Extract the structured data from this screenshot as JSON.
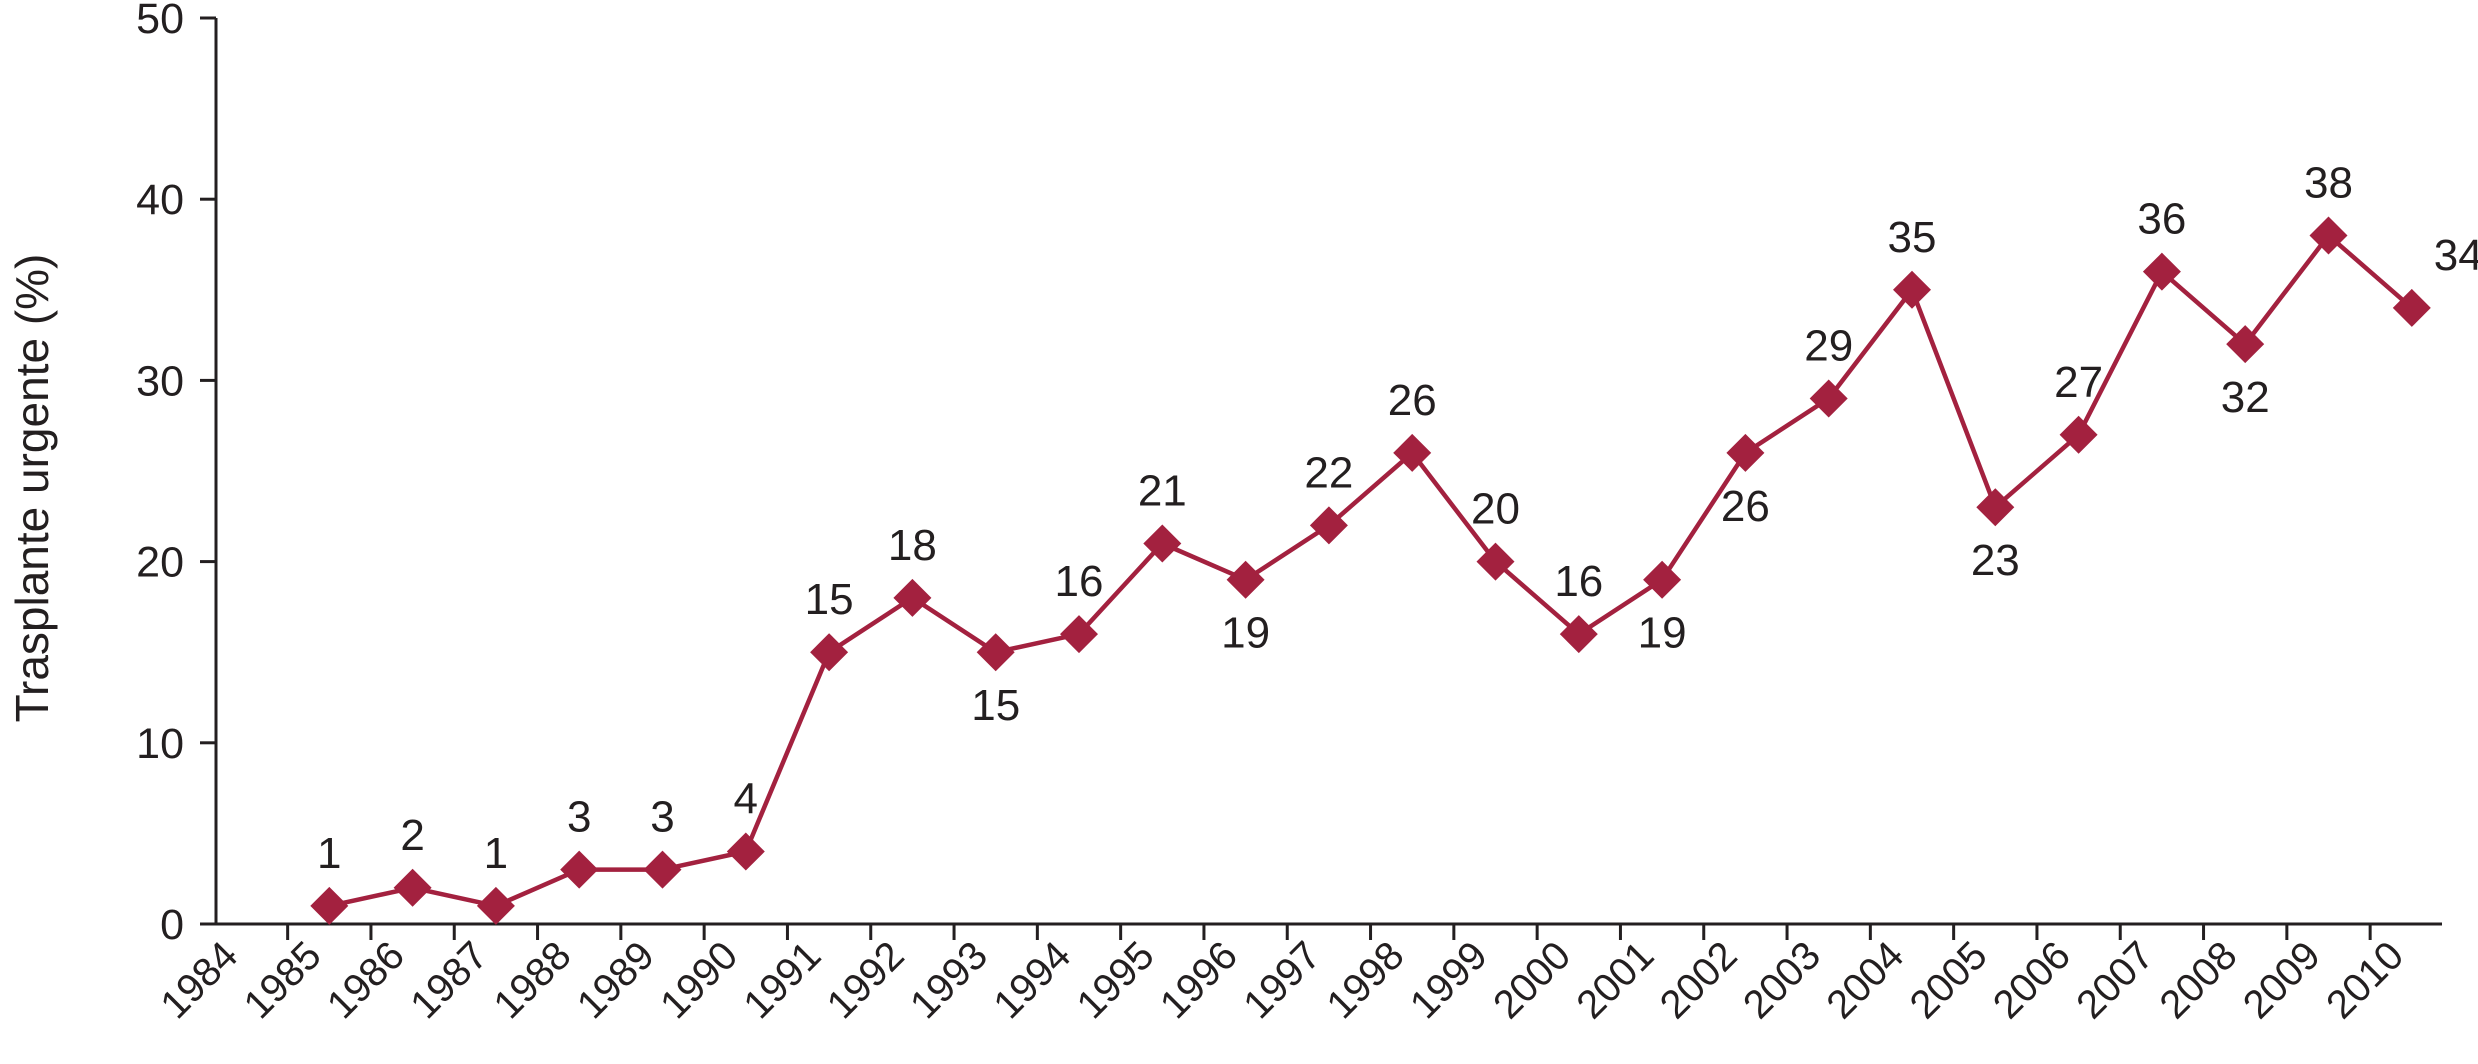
{
  "chart_data": {
    "type": "line",
    "title": "",
    "xlabel": "",
    "ylabel": "Trasplante urgente (%)",
    "ylim": [
      0,
      50
    ],
    "yticks": [
      0,
      10,
      20,
      30,
      40,
      50
    ],
    "categories": [
      "1984",
      "1985",
      "1986",
      "1987",
      "1988",
      "1989",
      "1990",
      "1991",
      "1992",
      "1993",
      "1994",
      "1995",
      "1996",
      "1997",
      "1998",
      "1999",
      "2000",
      "2001",
      "2002",
      "2003",
      "2004",
      "2005",
      "2006",
      "2007",
      "2008",
      "2009",
      "2010"
    ],
    "series": [
      {
        "values": [
          null,
          1,
          2,
          1,
          3,
          3,
          4,
          15,
          18,
          15,
          16,
          21,
          19,
          22,
          26,
          20,
          16,
          19,
          26,
          29,
          35,
          23,
          27,
          36,
          32,
          38,
          34
        ],
        "labels": [
          null,
          "1",
          "2",
          "1",
          "3",
          "3",
          "4",
          "15",
          "18",
          "15",
          "16",
          "21",
          "19",
          "22",
          "26",
          "20",
          "16",
          "19",
          "26",
          "29",
          "35",
          "23",
          "27",
          "36",
          "32",
          "38",
          "34"
        ],
        "label_positions": [
          null,
          "above",
          "above",
          "above",
          "above",
          "above",
          "above",
          "above",
          "above",
          "below",
          "above",
          "above",
          "below",
          "above",
          "above",
          "above",
          "above",
          "below",
          "below",
          "above",
          "above",
          "below",
          "above",
          "above",
          "below",
          "above",
          "above"
        ]
      }
    ],
    "grid": false,
    "legend": "none",
    "colors": {
      "series": "#a3213f",
      "axis": "#231f20",
      "text": "#231f20"
    },
    "marker": "diamond"
  }
}
